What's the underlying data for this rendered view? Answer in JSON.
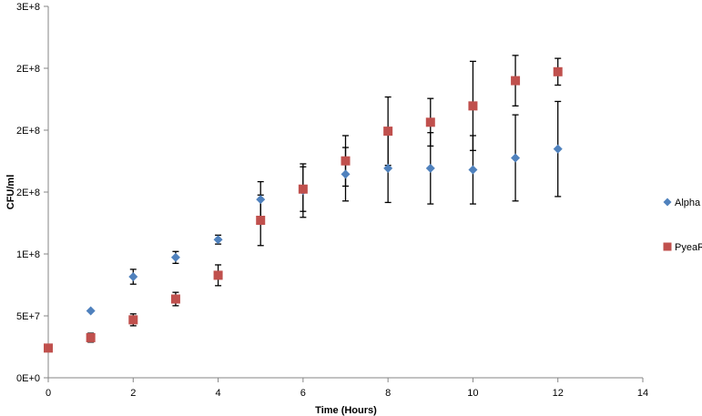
{
  "chart_data": {
    "type": "scatter",
    "title": "",
    "xlabel": "Time (Hours)",
    "ylabel": "CFU/ml",
    "xlim": [
      0,
      14
    ],
    "ylim": [
      0,
      250000000
    ],
    "x_ticks": [
      "0",
      "2",
      "4",
      "6",
      "8",
      "10",
      "12",
      "14"
    ],
    "y_ticks": [
      "0E+0",
      "5E+7",
      "1E+8",
      "2E+8",
      "2E+8",
      "2E+8",
      "3E+8"
    ],
    "grid": false,
    "legend_position": "right",
    "series": [
      {
        "name": "Alpha",
        "marker": "diamond",
        "color": "#4F81BD",
        "points": [
          {
            "x": 0,
            "y": 20000000,
            "err": 0
          },
          {
            "x": 1,
            "y": 45000000,
            "err": 0
          },
          {
            "x": 2,
            "y": 68000000,
            "err": 5000000
          },
          {
            "x": 3,
            "y": 81000000,
            "err": 4000000
          },
          {
            "x": 4,
            "y": 93000000,
            "err": 3000000
          },
          {
            "x": 5,
            "y": 120000000,
            "err": 12000000
          },
          {
            "x": 6,
            "y": 126000000,
            "err": 18000000
          },
          {
            "x": 7,
            "y": 137000000,
            "err": 18000000
          },
          {
            "x": 8,
            "y": 141000000,
            "err": 23000000
          },
          {
            "x": 9,
            "y": 141000000,
            "err": 24000000
          },
          {
            "x": 10,
            "y": 140000000,
            "err": 23000000
          },
          {
            "x": 11,
            "y": 148000000,
            "err": 29000000
          },
          {
            "x": 12,
            "y": 154000000,
            "err": 32000000
          }
        ]
      },
      {
        "name": "PyeaR",
        "marker": "square",
        "color": "#C0504D",
        "points": [
          {
            "x": 0,
            "y": 20000000,
            "err": 0
          },
          {
            "x": 1,
            "y": 27000000,
            "err": 3000000
          },
          {
            "x": 2,
            "y": 39000000,
            "err": 4000000
          },
          {
            "x": 3,
            "y": 53000000,
            "err": 4500000
          },
          {
            "x": 4,
            "y": 69000000,
            "err": 7000000
          },
          {
            "x": 5,
            "y": 106000000,
            "err": 17000000
          },
          {
            "x": 6,
            "y": 127000000,
            "err": 15000000
          },
          {
            "x": 7,
            "y": 146000000,
            "err": 17000000
          },
          {
            "x": 8,
            "y": 166000000,
            "err": 23000000
          },
          {
            "x": 9,
            "y": 172000000,
            "err": 16000000
          },
          {
            "x": 10,
            "y": 183000000,
            "err": 30000000
          },
          {
            "x": 11,
            "y": 200000000,
            "err": 17000000
          },
          {
            "x": 12,
            "y": 206000000,
            "err": 9000000
          }
        ]
      }
    ]
  }
}
